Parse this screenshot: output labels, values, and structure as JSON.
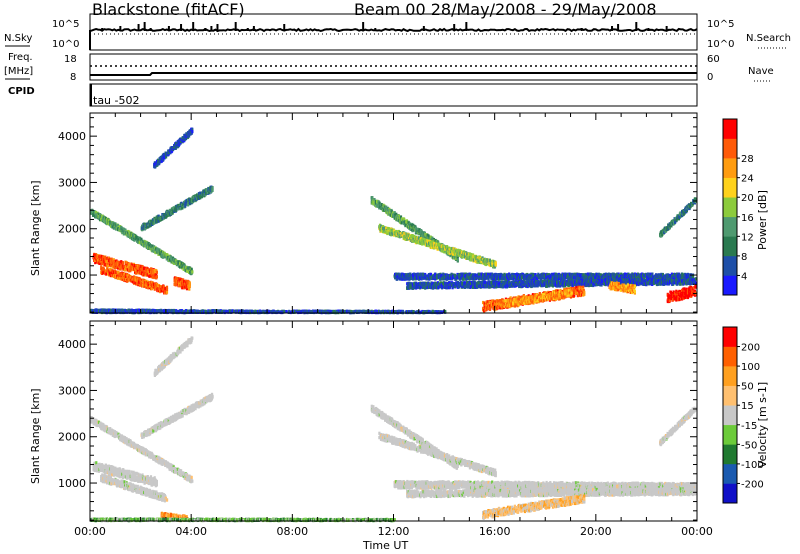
{
  "header": {
    "station": "Blackstone (fitACF)",
    "beam_date": "Beam 00  28/May/2008 - 29/May/2008"
  },
  "small_labels": {
    "nsky": "N.Sky",
    "nsearch": "N.Search",
    "nsky_top": "10^5",
    "nsky_bottom": "10^0",
    "freq": "Freq.",
    "mhz": "[MHz]",
    "freq_top": "18",
    "freq_bottom": "8",
    "nave_top": "60",
    "nave_bottom": "0",
    "nave": "Nave",
    "cpid": "CPID",
    "tau": "tau -502"
  },
  "colors": {
    "axis": "#000000",
    "background": "#ffffff",
    "ground_scatter": "#c8c8c8"
  },
  "chart_data": [
    {
      "type": "heatmap",
      "name": "power",
      "xlabel": "",
      "ylabel": "Slant Range [km]",
      "xlim": [
        0,
        24
      ],
      "ylim": [
        180,
        4500
      ],
      "yticks": [
        1000,
        2000,
        3000,
        4000
      ],
      "colorbar": {
        "label": "Power [dB]",
        "ticks": [
          "4",
          "8",
          "12",
          "16",
          "20",
          "24",
          "28"
        ],
        "colors": [
          "#1a1aff",
          "#1e4fa8",
          "#2a7a50",
          "#4f9a70",
          "#8ccb3c",
          "#ffd21c",
          "#ff9c10",
          "#ff5a08",
          "#ff0000"
        ]
      },
      "bands": [
        {
          "t": [
            0.0,
            4.0
          ],
          "r": [
            2400,
            1100
          ],
          "level": 3,
          "width": 70
        },
        {
          "t": [
            0.1,
            2.6
          ],
          "r": [
            1400,
            1050
          ],
          "level": 7,
          "width": 110
        },
        {
          "t": [
            0.4,
            3.0
          ],
          "r": [
            1150,
            700
          ],
          "level": 7,
          "width": 90
        },
        {
          "t": [
            2.0,
            4.8
          ],
          "r": [
            2050,
            2900
          ],
          "level": 2,
          "width": 70
        },
        {
          "t": [
            2.5,
            4.0
          ],
          "r": [
            3400,
            4150
          ],
          "level": 1,
          "width": 70
        },
        {
          "t": [
            3.3,
            3.9
          ],
          "r": [
            900,
            800
          ],
          "level": 7,
          "width": 110
        },
        {
          "t": [
            0.0,
            8.0
          ],
          "r": [
            250,
            220
          ],
          "level": 1,
          "width": 40
        },
        {
          "t": [
            8.0,
            14.0
          ],
          "r": [
            230,
            220
          ],
          "level": 1,
          "width": 35
        },
        {
          "t": [
            11.1,
            14.5
          ],
          "r": [
            2650,
            1400
          ],
          "level": 3,
          "width": 80
        },
        {
          "t": [
            11.4,
            16.0
          ],
          "r": [
            2050,
            1250
          ],
          "level": 4,
          "width": 80
        },
        {
          "t": [
            12.0,
            23.8
          ],
          "r": [
            1000,
            1000
          ],
          "level": 1,
          "width": 70
        },
        {
          "t": [
            12.5,
            24.0
          ],
          "r": [
            800,
            900
          ],
          "level": 1,
          "width": 70
        },
        {
          "t": [
            15.5,
            19.5
          ],
          "r": [
            350,
            700
          ],
          "level": 7,
          "width": 120
        },
        {
          "t": [
            16.2,
            19.0
          ],
          "r": [
            400,
            650
          ],
          "level": 6,
          "width": 80
        },
        {
          "t": [
            20.5,
            21.5
          ],
          "r": [
            820,
            720
          ],
          "level": 6,
          "width": 100
        },
        {
          "t": [
            22.8,
            24.0
          ],
          "r": [
            550,
            700
          ],
          "level": 8,
          "width": 130
        },
        {
          "t": [
            22.5,
            24.0
          ],
          "r": [
            1900,
            2700
          ],
          "level": 2,
          "width": 60
        }
      ]
    },
    {
      "type": "heatmap",
      "name": "velocity",
      "xlabel": "Time UT",
      "ylabel": "Slant Range [km]",
      "xlim": [
        0,
        24
      ],
      "ylim": [
        180,
        4500
      ],
      "yticks": [
        1000,
        2000,
        3000,
        4000
      ],
      "xticks": [
        "00:00",
        "04:00",
        "08:00",
        "12:00",
        "16:00",
        "20:00",
        "00:00"
      ],
      "colorbar": {
        "label": "Velocity [m s-1]",
        "ticks": [
          "200",
          "100",
          "50",
          "15",
          "-15",
          "-50",
          "-100",
          "-200"
        ],
        "colors": [
          "#1010c8",
          "#1a5ab0",
          "#207a30",
          "#6ccb3a",
          "#c8c8c8",
          "#ffc070",
          "#ffa020",
          "#ff6000",
          "#ff0000"
        ]
      },
      "bands": [
        {
          "t": [
            0.0,
            4.0
          ],
          "r": [
            2400,
            1100
          ],
          "level": 4,
          "width": 70
        },
        {
          "t": [
            0.1,
            2.6
          ],
          "r": [
            1400,
            1050
          ],
          "level": 4,
          "width": 110
        },
        {
          "t": [
            0.4,
            3.0
          ],
          "r": [
            1150,
            700
          ],
          "level": 4,
          "width": 90
        },
        {
          "t": [
            2.0,
            4.8
          ],
          "r": [
            2050,
            2900
          ],
          "level": 4,
          "width": 70
        },
        {
          "t": [
            2.5,
            4.0
          ],
          "r": [
            3400,
            4150
          ],
          "level": 4,
          "width": 70
        },
        {
          "t": [
            2.8,
            3.8
          ],
          "r": [
            330,
            260
          ],
          "level": 6,
          "width": 70
        },
        {
          "t": [
            0.0,
            12.0
          ],
          "r": [
            230,
            220
          ],
          "level": 3,
          "width": 35
        },
        {
          "t": [
            11.1,
            14.5
          ],
          "r": [
            2650,
            1400
          ],
          "level": 4,
          "width": 80
        },
        {
          "t": [
            11.4,
            16.0
          ],
          "r": [
            2050,
            1250
          ],
          "level": 4,
          "width": 80
        },
        {
          "t": [
            12.0,
            24.0
          ],
          "r": [
            1000,
            950
          ],
          "level": 4,
          "width": 90
        },
        {
          "t": [
            12.5,
            24.0
          ],
          "r": [
            800,
            850
          ],
          "level": 4,
          "width": 80
        },
        {
          "t": [
            15.5,
            19.5
          ],
          "r": [
            350,
            700
          ],
          "level": 5,
          "width": 100
        },
        {
          "t": [
            22.5,
            24.0
          ],
          "r": [
            1900,
            2700
          ],
          "level": 4,
          "width": 60
        }
      ]
    }
  ]
}
